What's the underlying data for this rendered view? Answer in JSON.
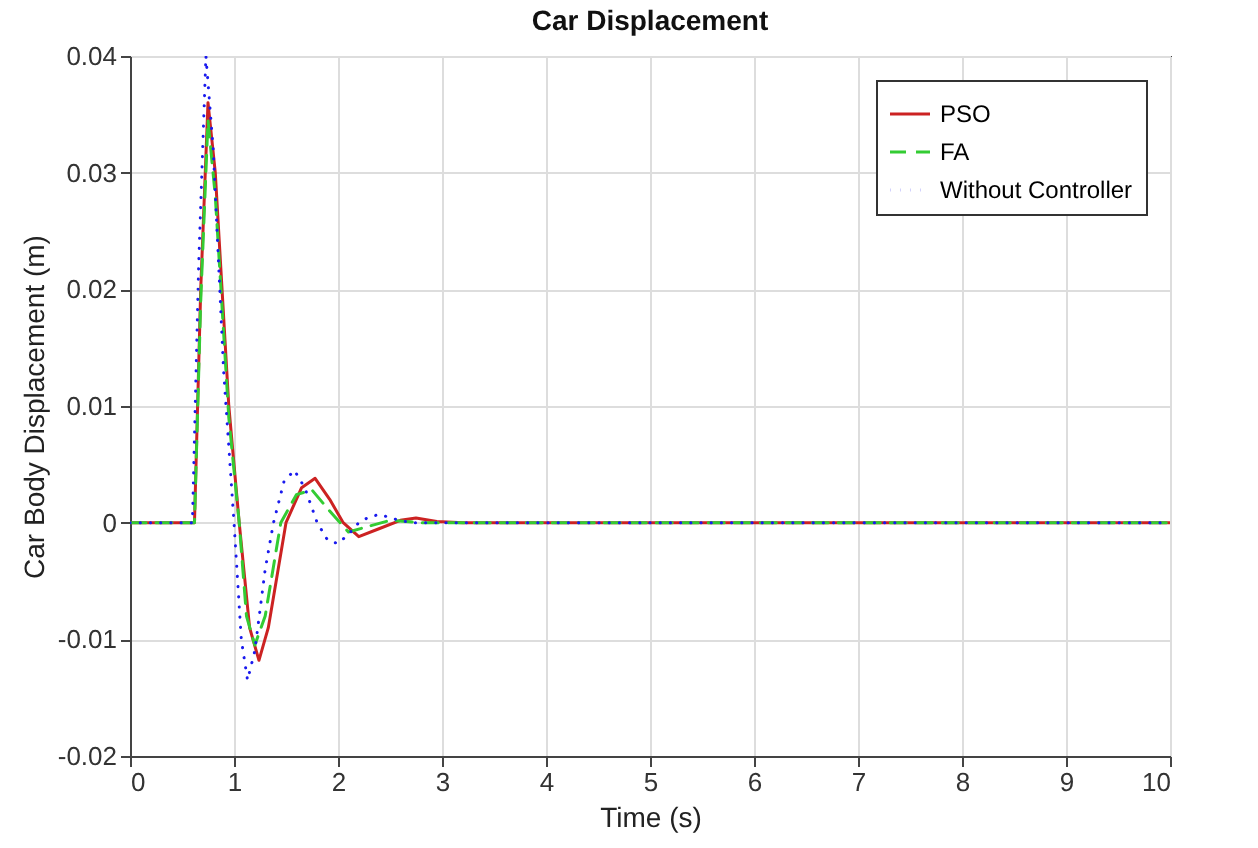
{
  "chart_data": {
    "type": "line",
    "title": "Car Displacement",
    "xlabel": "Time (s)",
    "ylabel": "Car Body Displacement (m)",
    "xlim": [
      0,
      10
    ],
    "xticks": [
      0,
      1,
      2,
      3,
      4,
      5,
      6,
      7,
      8,
      9,
      10
    ],
    "ylim": [
      -0.02,
      0.04
    ],
    "yticks": [
      -0.02,
      -0.01,
      {
        "value": 0,
        "label": "0"
      },
      0.01,
      0.02,
      0.03,
      0.04
    ],
    "grid": true,
    "legend": "top right",
    "series": [
      {
        "name": "PSO",
        "color": "#cc2222",
        "line_style": "solid",
        "x": [
          0,
          0.62,
          0.68,
          0.75,
          0.82,
          0.95,
          1.05,
          1.15,
          1.24,
          1.33,
          1.5,
          1.65,
          1.78,
          1.92,
          2.05,
          2.2,
          2.4,
          2.6,
          2.75,
          2.95,
          3.2,
          10
        ],
        "values": [
          0,
          0,
          0.02,
          0.036,
          0.03,
          0.01,
          0,
          -0.009,
          -0.0118,
          -0.009,
          0,
          0.003,
          0.0038,
          0.002,
          0,
          -0.0012,
          -0.0005,
          0.0002,
          0.0004,
          0.0001,
          0,
          0
        ]
      },
      {
        "name": "FA",
        "color": "#33cc33",
        "line_style": "dashed",
        "x": [
          0,
          0.62,
          0.68,
          0.75,
          0.82,
          0.95,
          1.05,
          1.12,
          1.2,
          1.3,
          1.45,
          1.6,
          1.75,
          1.9,
          2.1,
          2.3,
          2.5,
          2.8,
          10
        ],
        "values": [
          0,
          0,
          0.019,
          0.0345,
          0.028,
          0.009,
          0,
          -0.008,
          -0.0105,
          -0.008,
          0,
          0.0024,
          0.0028,
          0.0012,
          -0.0008,
          -0.0003,
          0.0002,
          0,
          0
        ]
      },
      {
        "name": "Without Controller",
        "color": "#1a1aee",
        "line_style": "dotted",
        "x": [
          0,
          0.6,
          0.66,
          0.73,
          0.8,
          0.9,
          1.0,
          1.07,
          1.13,
          1.2,
          1.3,
          1.38,
          1.48,
          1.58,
          1.68,
          1.8,
          1.9,
          2.0,
          2.1,
          2.2,
          2.3,
          2.4,
          2.55,
          2.7,
          2.9,
          10
        ],
        "values": [
          0,
          0,
          0.022,
          0.04,
          0.032,
          0.013,
          0,
          -0.01,
          -0.0135,
          -0.011,
          -0.004,
          0,
          0.0035,
          0.0045,
          0.003,
          0,
          -0.0015,
          -0.0018,
          -0.001,
          0,
          0.0005,
          0.0007,
          0.0003,
          0,
          0,
          0
        ]
      }
    ]
  }
}
